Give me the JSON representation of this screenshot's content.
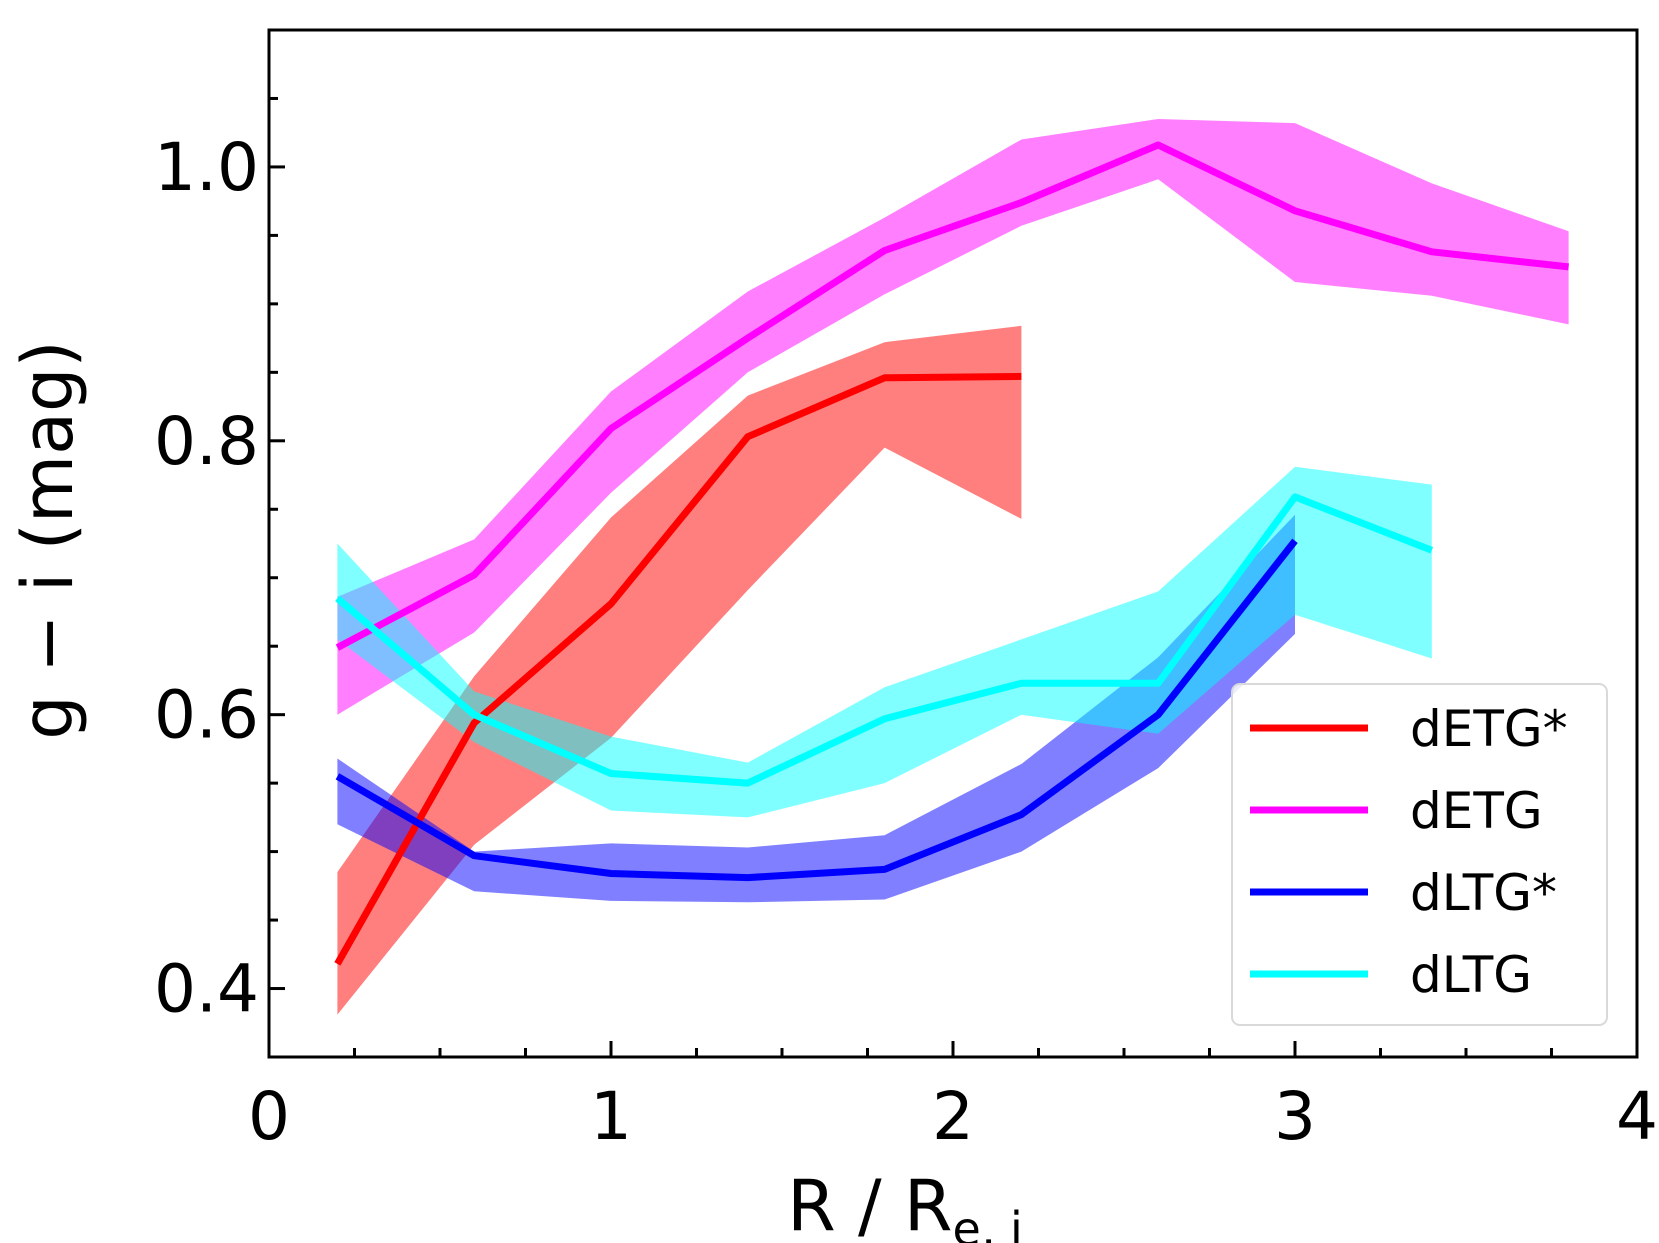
{
  "chart_data": {
    "type": "line",
    "title": "",
    "xlabel": "R / R",
    "xlabel_sub": "e, i",
    "ylabel": "g − i  (mag)",
    "xlim": [
      0,
      4
    ],
    "ylim": [
      0.35,
      1.1
    ],
    "x_ticks": [
      0,
      1,
      2,
      3,
      4
    ],
    "x_tick_labels": [
      "0",
      "1",
      "2",
      "3",
      "4"
    ],
    "y_ticks": [
      0.4,
      0.6,
      0.8,
      1.0
    ],
    "y_tick_labels": [
      "0.4",
      "0.6",
      "0.8",
      "1.0"
    ],
    "x_minor_step": 0.25,
    "y_minor_step": 0.05,
    "grid": false,
    "legend_position": "lower-right",
    "series": [
      {
        "name": "dETG*",
        "color": "#ff0000",
        "x": [
          0.2,
          0.6,
          1.0,
          1.4,
          1.8,
          2.2
        ],
        "y": [
          0.418,
          0.594,
          0.681,
          0.803,
          0.846,
          0.847
        ],
        "lower": [
          0.381,
          0.505,
          0.583,
          0.691,
          0.795,
          0.743
        ],
        "upper": [
          0.485,
          0.628,
          0.744,
          0.833,
          0.872,
          0.884
        ]
      },
      {
        "name": "dETG",
        "color": "#ff00ff",
        "x": [
          0.2,
          0.6,
          1.0,
          1.4,
          1.8,
          2.2,
          2.6,
          3.0,
          3.4,
          3.8
        ],
        "y": [
          0.649,
          0.702,
          0.809,
          0.875,
          0.939,
          0.974,
          1.016,
          0.968,
          0.938,
          0.927
        ],
        "lower": [
          0.6,
          0.66,
          0.762,
          0.85,
          0.907,
          0.957,
          0.991,
          0.916,
          0.906,
          0.885
        ],
        "upper": [
          0.686,
          0.728,
          0.836,
          0.909,
          0.963,
          1.02,
          1.035,
          1.032,
          0.988,
          0.953
        ]
      },
      {
        "name": "dLTG*",
        "color": "#0000ff",
        "x": [
          0.2,
          0.6,
          1.0,
          1.4,
          1.8,
          2.2,
          2.6,
          3.0
        ],
        "y": [
          0.555,
          0.497,
          0.484,
          0.481,
          0.487,
          0.527,
          0.6,
          0.727
        ],
        "lower": [
          0.52,
          0.471,
          0.464,
          0.463,
          0.465,
          0.5,
          0.561,
          0.659
        ],
        "upper": [
          0.568,
          0.5,
          0.506,
          0.503,
          0.512,
          0.564,
          0.642,
          0.746
        ]
      },
      {
        "name": "dLTG",
        "color": "#00ffff",
        "x": [
          0.2,
          0.6,
          1.0,
          1.4,
          1.8,
          2.2,
          2.6,
          3.0,
          3.4
        ],
        "y": [
          0.685,
          0.6,
          0.557,
          0.55,
          0.597,
          0.623,
          0.623,
          0.759,
          0.72
        ],
        "lower": [
          0.655,
          0.58,
          0.53,
          0.525,
          0.55,
          0.6,
          0.586,
          0.673,
          0.641
        ],
        "upper": [
          0.725,
          0.617,
          0.584,
          0.565,
          0.62,
          0.655,
          0.69,
          0.781,
          0.768
        ]
      }
    ]
  }
}
